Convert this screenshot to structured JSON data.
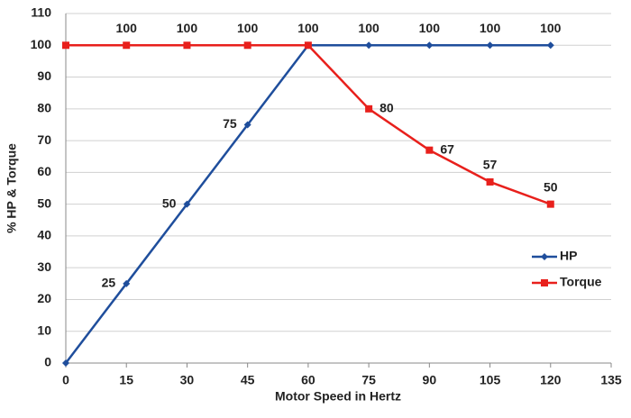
{
  "chart_data": {
    "type": "line",
    "xlabel": "Motor Speed in Hertz",
    "ylabel": "% HP & Torque",
    "x": [
      0,
      15,
      30,
      45,
      60,
      75,
      90,
      105,
      120
    ],
    "series": [
      {
        "name": "HP",
        "color": "#1f4e9c",
        "marker": "diamond",
        "values": [
          0,
          25,
          50,
          75,
          100,
          100,
          100,
          100,
          100
        ],
        "value_labels": [
          null,
          "25",
          "50",
          "75",
          "100",
          "100",
          "100",
          "100",
          "100"
        ]
      },
      {
        "name": "Torque",
        "color": "#e8201c",
        "marker": "square",
        "values": [
          100,
          100,
          100,
          100,
          100,
          80,
          67,
          57,
          50
        ],
        "value_labels": [
          null,
          "100",
          "100",
          "100",
          null,
          "80",
          "67",
          "57",
          "50"
        ]
      }
    ],
    "xlim": [
      0,
      135
    ],
    "xticks": [
      0,
      15,
      30,
      45,
      60,
      75,
      90,
      105,
      120,
      135
    ],
    "ylim": [
      0,
      110
    ],
    "yticks": [
      0,
      10,
      20,
      30,
      40,
      50,
      60,
      70,
      80,
      90,
      100,
      110
    ],
    "grid": true,
    "legend": "right"
  }
}
